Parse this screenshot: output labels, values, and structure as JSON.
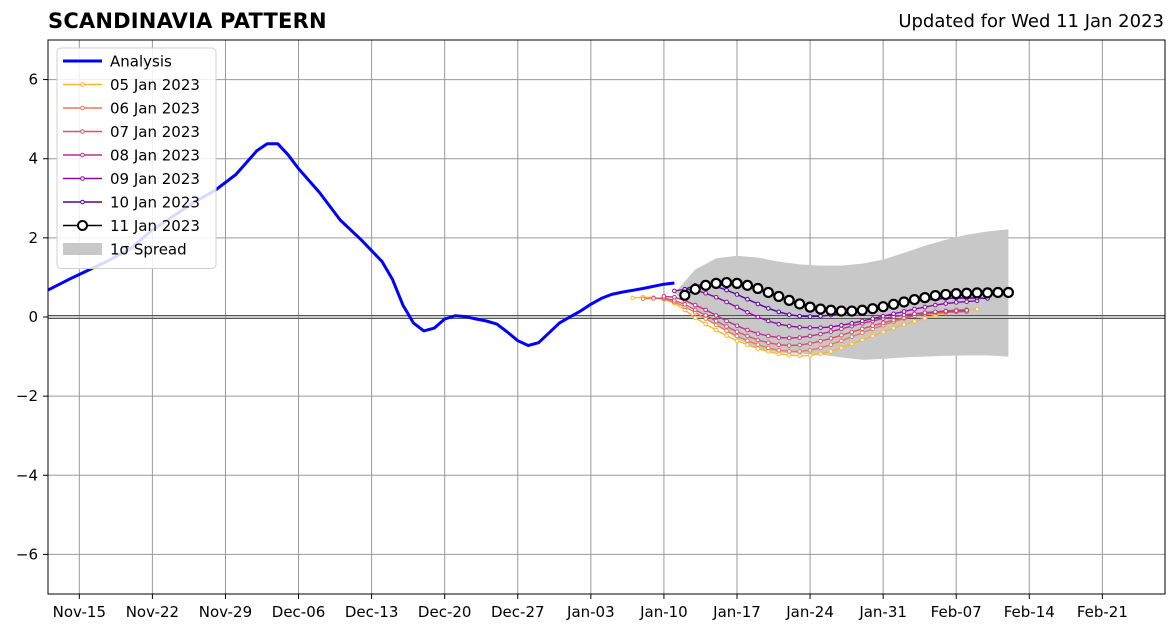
{
  "header": {
    "title": "SCANDINAVIA PATTERN",
    "updated": "Updated for Wed 11 Jan 2023"
  },
  "chart_data": {
    "type": "line",
    "title": "SCANDINAVIA PATTERN",
    "x_unit": "date",
    "xlim": [
      "2022-11-12",
      "2023-02-27"
    ],
    "ylim": [
      -7,
      7
    ],
    "x_ticks": [
      {
        "date": "2022-11-15",
        "label": "Nov-15"
      },
      {
        "date": "2022-11-22",
        "label": "Nov-22"
      },
      {
        "date": "2022-11-29",
        "label": "Nov-29"
      },
      {
        "date": "2022-12-06",
        "label": "Dec-06"
      },
      {
        "date": "2022-12-13",
        "label": "Dec-13"
      },
      {
        "date": "2022-12-20",
        "label": "Dec-20"
      },
      {
        "date": "2022-12-27",
        "label": "Dec-27"
      },
      {
        "date": "2023-01-03",
        "label": "Jan-03"
      },
      {
        "date": "2023-01-10",
        "label": "Jan-10"
      },
      {
        "date": "2023-01-17",
        "label": "Jan-17"
      },
      {
        "date": "2023-01-24",
        "label": "Jan-24"
      },
      {
        "date": "2023-01-31",
        "label": "Jan-31"
      },
      {
        "date": "2023-02-07",
        "label": "Feb-07"
      },
      {
        "date": "2023-02-14",
        "label": "Feb-14"
      },
      {
        "date": "2023-02-21",
        "label": "Feb-21"
      }
    ],
    "y_ticks": [
      {
        "value": -6,
        "label": "−6"
      },
      {
        "value": -4,
        "label": "−4"
      },
      {
        "value": -2,
        "label": "−2"
      },
      {
        "value": 0,
        "label": "0"
      },
      {
        "value": 2,
        "label": "2"
      },
      {
        "value": 4,
        "label": "4"
      },
      {
        "value": 6,
        "label": "6"
      }
    ],
    "grid": true,
    "legend_position": "top-left",
    "series": [
      {
        "name": "Analysis",
        "color": "#0000ff",
        "style": "thick-line",
        "x": [
          "2022-11-12",
          "2022-11-14",
          "2022-11-16",
          "2022-11-18",
          "2022-11-20",
          "2022-11-22",
          "2022-11-24",
          "2022-11-26",
          "2022-11-28",
          "2022-11-30",
          "2022-12-01",
          "2022-12-02",
          "2022-12-03",
          "2022-12-04",
          "2022-12-05",
          "2022-12-06",
          "2022-12-08",
          "2022-12-10",
          "2022-12-12",
          "2022-12-14",
          "2022-12-15",
          "2022-12-16",
          "2022-12-17",
          "2022-12-18",
          "2022-12-19",
          "2022-12-20",
          "2022-12-21",
          "2022-12-22",
          "2022-12-23",
          "2022-12-24",
          "2022-12-25",
          "2022-12-26",
          "2022-12-27",
          "2022-12-28",
          "2022-12-29",
          "2022-12-30",
          "2022-12-31",
          "2023-01-02",
          "2023-01-03",
          "2023-01-04",
          "2023-01-05",
          "2023-01-06",
          "2023-01-08",
          "2023-01-10",
          "2023-01-11"
        ],
        "values": [
          0.68,
          0.95,
          1.2,
          1.45,
          1.75,
          2.2,
          2.55,
          2.9,
          3.2,
          3.6,
          3.9,
          4.2,
          4.38,
          4.38,
          4.1,
          3.75,
          3.15,
          2.45,
          1.95,
          1.4,
          0.95,
          0.3,
          -0.15,
          -0.35,
          -0.28,
          -0.05,
          0.03,
          0.01,
          -0.05,
          -0.1,
          -0.18,
          -0.38,
          -0.6,
          -0.72,
          -0.65,
          -0.4,
          -0.15,
          0.15,
          0.32,
          0.47,
          0.57,
          0.63,
          0.72,
          0.83,
          0.86
        ]
      },
      {
        "name": "05 Jan 2023",
        "color": "#fdb42f",
        "start": "2023-01-07",
        "values": [
          0.48,
          0.5,
          0.49,
          0.45,
          0.35,
          0.18,
          -0.02,
          -0.18,
          -0.33,
          -0.47,
          -0.6,
          -0.7,
          -0.8,
          -0.87,
          -0.93,
          -0.96,
          -0.98,
          -0.97,
          -0.93,
          -0.87,
          -0.78,
          -0.68,
          -0.58,
          -0.48,
          -0.38,
          -0.28,
          -0.19,
          -0.11,
          -0.03,
          0.04,
          0.1,
          0.15,
          0.18,
          0.2
        ]
      },
      {
        "name": "06 Jan 2023",
        "color": "#ed7953",
        "start": "2023-01-08",
        "values": [
          0.46,
          0.48,
          0.46,
          0.38,
          0.26,
          0.12,
          -0.04,
          -0.2,
          -0.35,
          -0.48,
          -0.6,
          -0.7,
          -0.78,
          -0.84,
          -0.87,
          -0.87,
          -0.84,
          -0.78,
          -0.7,
          -0.6,
          -0.5,
          -0.4,
          -0.3,
          -0.21,
          -0.12,
          -0.04,
          0.03,
          0.09,
          0.13,
          0.16,
          0.18,
          0.19
        ]
      },
      {
        "name": "07 Jan 2023",
        "color": "#d5546e",
        "start": "2023-01-09",
        "values": [
          0.47,
          0.48,
          0.42,
          0.32,
          0.18,
          0.04,
          -0.1,
          -0.24,
          -0.37,
          -0.48,
          -0.58,
          -0.65,
          -0.7,
          -0.72,
          -0.71,
          -0.67,
          -0.61,
          -0.54,
          -0.46,
          -0.38,
          -0.3,
          -0.22,
          -0.15,
          -0.08,
          -0.02,
          0.03,
          0.07,
          0.1,
          0.12,
          0.13,
          0.14
        ]
      },
      {
        "name": "08 Jan 2023",
        "color": "#b83289",
        "start": "2023-01-10",
        "values": [
          0.52,
          0.5,
          0.42,
          0.3,
          0.18,
          0.04,
          -0.1,
          -0.22,
          -0.33,
          -0.42,
          -0.48,
          -0.52,
          -0.53,
          -0.52,
          -0.48,
          -0.43,
          -0.37,
          -0.3,
          -0.23,
          -0.16,
          -0.1,
          -0.04,
          0.01,
          0.05,
          0.08,
          0.11,
          0.13,
          0.15,
          0.16,
          0.17
        ]
      },
      {
        "name": "09 Jan 2023",
        "color": "#8b0aa5",
        "start": "2023-01-11",
        "values": [
          0.66,
          0.7,
          0.68,
          0.6,
          0.5,
          0.38,
          0.25,
          0.12,
          0.0,
          -0.1,
          -0.18,
          -0.23,
          -0.26,
          -0.27,
          -0.27,
          -0.25,
          -0.21,
          -0.16,
          -0.1,
          -0.04,
          0.02,
          0.08,
          0.14,
          0.2,
          0.25,
          0.3,
          0.34,
          0.37,
          0.39,
          0.41
        ]
      },
      {
        "name": "10 Jan 2023",
        "color": "#5302a3",
        "start": "2023-01-12",
        "values": [
          0.7,
          0.8,
          0.82,
          0.77,
          0.68,
          0.57,
          0.45,
          0.33,
          0.22,
          0.13,
          0.06,
          0.02,
          0.01,
          0.02,
          0.05,
          0.09,
          0.14,
          0.19,
          0.24,
          0.29,
          0.33,
          0.37,
          0.4,
          0.43,
          0.45,
          0.47,
          0.48,
          0.48,
          0.48,
          0.47
        ]
      },
      {
        "name": "11 Jan 2023",
        "color": "#000000",
        "style": "hollow-markers",
        "start": "2023-01-12",
        "values": [
          0.55,
          0.7,
          0.8,
          0.85,
          0.87,
          0.85,
          0.8,
          0.72,
          0.62,
          0.52,
          0.42,
          0.33,
          0.25,
          0.2,
          0.17,
          0.15,
          0.15,
          0.17,
          0.21,
          0.26,
          0.32,
          0.38,
          0.44,
          0.49,
          0.54,
          0.57,
          0.59,
          0.6,
          0.61,
          0.61,
          0.62,
          0.62
        ]
      }
    ],
    "spread": {
      "name": "1σ Spread",
      "color": "#c8c8c8",
      "x": [
        "2023-01-11",
        "2023-01-13",
        "2023-01-15",
        "2023-01-17",
        "2023-01-19",
        "2023-01-21",
        "2023-01-23",
        "2023-01-25",
        "2023-01-27",
        "2023-01-29",
        "2023-01-31",
        "2023-02-02",
        "2023-02-04",
        "2023-02-06",
        "2023-02-08",
        "2023-02-10",
        "2023-02-12"
      ],
      "upper": [
        0.6,
        1.2,
        1.48,
        1.55,
        1.5,
        1.4,
        1.33,
        1.3,
        1.3,
        1.35,
        1.45,
        1.62,
        1.8,
        1.95,
        2.08,
        2.16,
        2.22
      ],
      "lower": [
        0.6,
        0.2,
        -0.2,
        -0.55,
        -0.8,
        -0.9,
        -0.93,
        -0.95,
        -1.02,
        -1.08,
        -1.06,
        -1.02,
        -1.0,
        -0.98,
        -0.97,
        -0.97,
        -1.0
      ]
    }
  }
}
